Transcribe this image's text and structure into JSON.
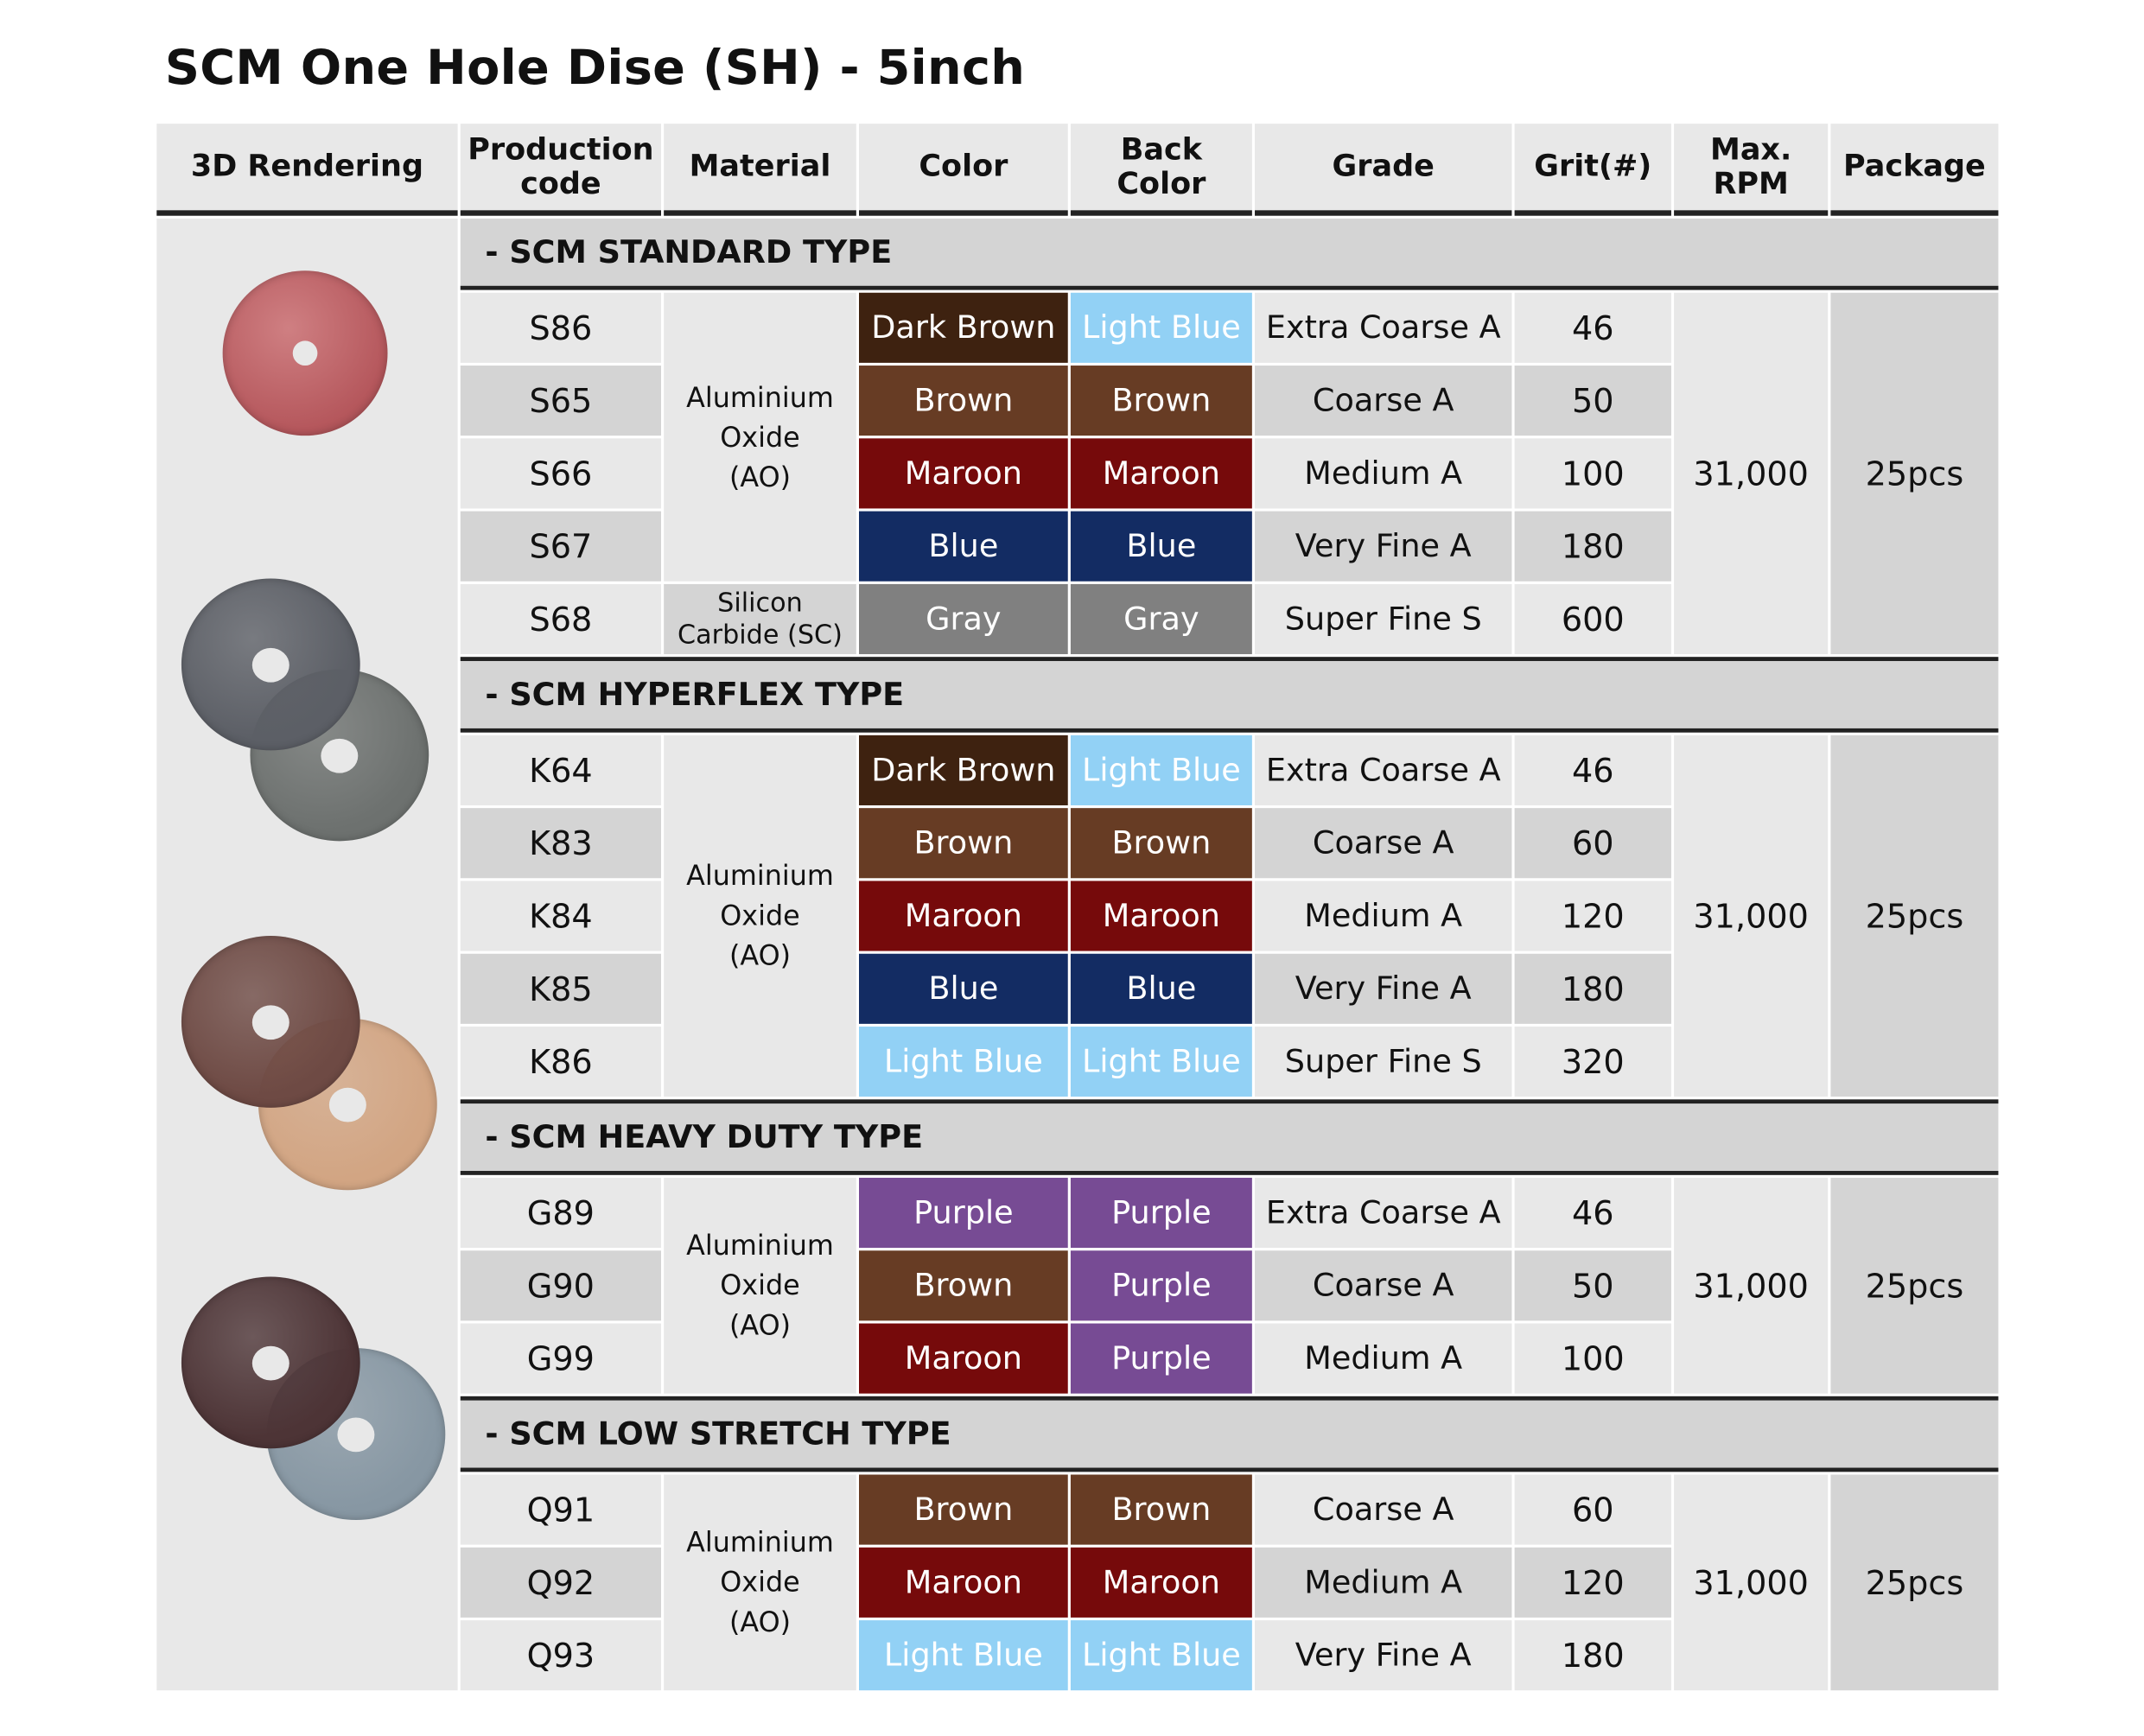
{
  "title": "SCM One Hole Dise (SH) - 5inch",
  "headers": [
    "3D Rendering",
    "Production\ncode",
    "Material",
    "Color",
    "Back\nColor",
    "Grade",
    "Grit(#)",
    "Max.\nRPM",
    "Package"
  ],
  "color_map": {
    "Dark Brown": "#3e2210",
    "Light Blue": "#92d1f5",
    "Brown": "#673c24",
    "Maroon": "#760a0b",
    "Blue": "#132c63",
    "Gray": "#808080",
    "Purple": "#774b94"
  },
  "disc_images": [
    {
      "name": "standard-disc-image",
      "colors": [
        "#b5575c"
      ]
    },
    {
      "name": "hyperflex-disc-image",
      "colors": [
        "#5c5f66",
        "#6d716f"
      ]
    },
    {
      "name": "heavy-duty-disc-image",
      "colors": [
        "#6e4a44",
        "#d2a583"
      ]
    },
    {
      "name": "low-stretch-disc-image",
      "colors": [
        "#4d3436",
        "#8797a3"
      ]
    }
  ],
  "sections": [
    {
      "title": "- SCM STANDARD TYPE",
      "rpm": "31,000",
      "package": "25pcs",
      "materials": [
        {
          "label": "Aluminium\nOxide\n(AO)",
          "rows": 4
        },
        {
          "label": "Silicon\nCarbide (SC)",
          "rows": 1
        }
      ],
      "rows": [
        {
          "code": "S86",
          "color": "Dark Brown",
          "back": "Light Blue",
          "grade": "Extra Coarse A",
          "grit": "46"
        },
        {
          "code": "S65",
          "color": "Brown",
          "back": "Brown",
          "grade": "Coarse A",
          "grit": "50"
        },
        {
          "code": "S66",
          "color": "Maroon",
          "back": "Maroon",
          "grade": "Medium A",
          "grit": "100"
        },
        {
          "code": "S67",
          "color": "Blue",
          "back": "Blue",
          "grade": "Very Fine A",
          "grit": "180"
        },
        {
          "code": "S68",
          "color": "Gray",
          "back": "Gray",
          "grade": "Super Fine S",
          "grit": "600"
        }
      ]
    },
    {
      "title": "- SCM HYPERFLEX TYPE",
      "rpm": "31,000",
      "package": "25pcs",
      "materials": [
        {
          "label": "Aluminium\nOxide\n(AO)",
          "rows": 5
        }
      ],
      "rows": [
        {
          "code": "K64",
          "color": "Dark Brown",
          "back": "Light Blue",
          "grade": "Extra Coarse A",
          "grit": "46"
        },
        {
          "code": "K83",
          "color": "Brown",
          "back": "Brown",
          "grade": "Coarse A",
          "grit": "60"
        },
        {
          "code": "K84",
          "color": "Maroon",
          "back": "Maroon",
          "grade": "Medium A",
          "grit": "120"
        },
        {
          "code": "K85",
          "color": "Blue",
          "back": "Blue",
          "grade": "Very Fine A",
          "grit": "180"
        },
        {
          "code": "K86",
          "color": "Light Blue",
          "back": "Light Blue",
          "grade": "Super Fine S",
          "grit": "320"
        }
      ]
    },
    {
      "title": "- SCM HEAVY DUTY TYPE",
      "rpm": "31,000",
      "package": "25pcs",
      "materials": [
        {
          "label": "Aluminium\nOxide\n(AO)",
          "rows": 3
        }
      ],
      "rows": [
        {
          "code": "G89",
          "color": "Purple",
          "back": "Purple",
          "grade": "Extra Coarse A",
          "grit": "46"
        },
        {
          "code": "G90",
          "color": "Brown",
          "back": "Purple",
          "grade": "Coarse A",
          "grit": "50"
        },
        {
          "code": "G99",
          "color": "Maroon",
          "back": "Purple",
          "grade": "Medium A",
          "grit": "100"
        }
      ]
    },
    {
      "title": "- SCM LOW STRETCH TYPE",
      "rpm": "31,000",
      "package": "25pcs",
      "materials": [
        {
          "label": "Aluminium\nOxide\n(AO)",
          "rows": 3
        }
      ],
      "rows": [
        {
          "code": "Q91",
          "color": "Brown",
          "back": "Brown",
          "grade": "Coarse A",
          "grit": "60"
        },
        {
          "code": "Q92",
          "color": "Maroon",
          "back": "Maroon",
          "grade": "Medium A",
          "grit": "120"
        },
        {
          "code": "Q93",
          "color": "Light Blue",
          "back": "Light Blue",
          "grade": "Very Fine A",
          "grit": "180"
        }
      ]
    }
  ]
}
